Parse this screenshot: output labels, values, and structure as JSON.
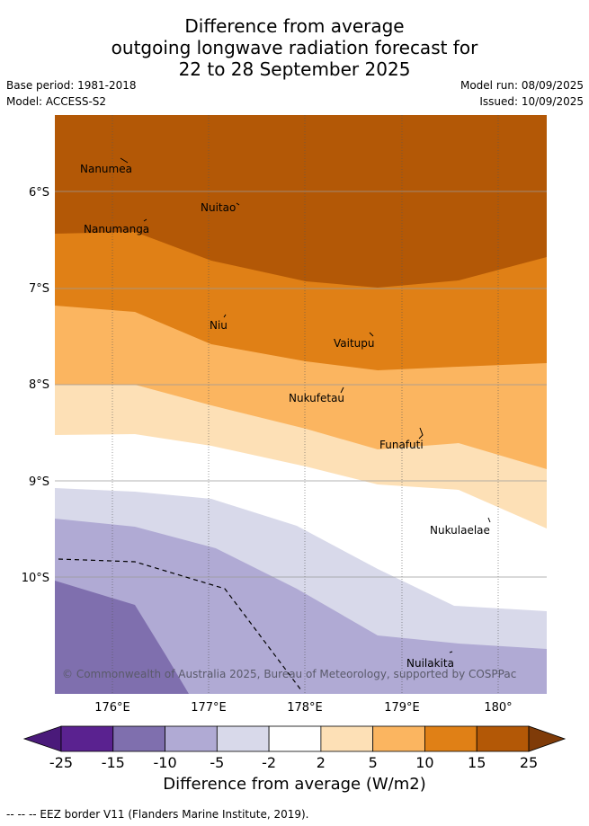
{
  "title": {
    "line1": "Difference from average",
    "line2": "outgoing longwave radiation forecast for",
    "line3": "22 to 28 September 2025"
  },
  "meta": {
    "base_period": "Base period: 1981-2018",
    "model": "Model: ACCESS-S2",
    "model_run": "Model run: 08/09/2025",
    "issued": "Issued: 10/09/2025"
  },
  "map": {
    "latitude_labels": [
      "6°S",
      "7°S",
      "8°S",
      "9°S",
      "10°S"
    ],
    "longitude_labels": [
      "176°E",
      "177°E",
      "178°E",
      "179°E",
      "180°"
    ],
    "islands": [
      {
        "name": "Nanumea"
      },
      {
        "name": "Nuitao"
      },
      {
        "name": "Nanumanga"
      },
      {
        "name": "Niu"
      },
      {
        "name": "Vaitupu"
      },
      {
        "name": "Nukufetau"
      },
      {
        "name": "Funafuti"
      },
      {
        "name": "Nukulaelae"
      },
      {
        "name": "Nuilakita"
      }
    ],
    "copyright": "© Commonwealth of Australia 2025, Bureau of Meteorology, supported by COSPPac"
  },
  "colorbar": {
    "labels": [
      "-25",
      "-15",
      "-10",
      "-5",
      "-2",
      "2",
      "5",
      "10",
      "15",
      "25"
    ],
    "colors": [
      "#4a1a7a",
      "#5a2290",
      "#7f6fae",
      "#b0aad4",
      "#d8d9ea",
      "#ffffff",
      "#fde0b6",
      "#fbb560",
      "#e08016",
      "#b35806",
      "#7f3b08"
    ],
    "title": "Difference from average (W/m2)"
  },
  "footer": {
    "eez_note": "--  --  -- EEZ border V11 (Flanders Marine Institute, 2019)."
  }
}
